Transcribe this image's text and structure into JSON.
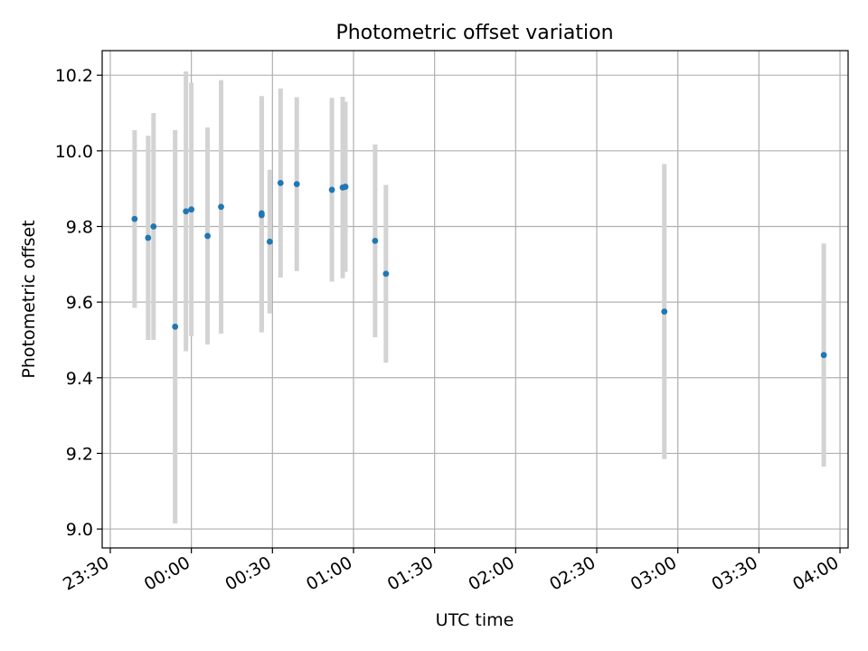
{
  "chart_data": {
    "type": "scatter",
    "title": "Photometric offset variation",
    "xlabel": "UTC time",
    "ylabel": "Photometric offset",
    "x_ticks": [
      "23:30",
      "00:00",
      "00:30",
      "01:00",
      "01:30",
      "02:00",
      "02:30",
      "03:00",
      "03:30",
      "04:00"
    ],
    "y_ticks": [
      "9.0",
      "9.2",
      "9.4",
      "9.6",
      "9.8",
      "10.0",
      "10.2"
    ],
    "xlim": [
      "23:27",
      "04:03"
    ],
    "ylim": [
      8.95,
      10.265
    ],
    "grid": true,
    "legend": "none",
    "colors": {
      "point": "#1f77b4",
      "errorbar": "#d3d3d3",
      "grid": "#b0b0b0"
    },
    "points": [
      {
        "x": "23:39",
        "y": 9.82,
        "err": 0.235
      },
      {
        "x": "23:44",
        "y": 9.77,
        "err": 0.27
      },
      {
        "x": "23:46",
        "y": 9.8,
        "err": 0.3
      },
      {
        "x": "23:54",
        "y": 9.535,
        "err": 0.52
      },
      {
        "x": "23:58",
        "y": 9.84,
        "err": 0.37
      },
      {
        "x": "00:00",
        "y": 9.845,
        "err": 0.335
      },
      {
        "x": "00:06",
        "y": 9.775,
        "err": 0.287
      },
      {
        "x": "00:11",
        "y": 9.852,
        "err": 0.335
      },
      {
        "x": "00:26",
        "y": 9.835,
        "err": 0.31
      },
      {
        "x": "00:26",
        "y": 9.83,
        "err": 0.31
      },
      {
        "x": "00:29",
        "y": 9.76,
        "err": 0.19
      },
      {
        "x": "00:33",
        "y": 9.915,
        "err": 0.25
      },
      {
        "x": "00:39",
        "y": 9.912,
        "err": 0.23
      },
      {
        "x": "00:52",
        "y": 9.897,
        "err": 0.243
      },
      {
        "x": "00:56",
        "y": 9.903,
        "err": 0.24
      },
      {
        "x": "00:57",
        "y": 9.905,
        "err": 0.225
      },
      {
        "x": "01:08",
        "y": 9.762,
        "err": 0.255
      },
      {
        "x": "01:12",
        "y": 9.675,
        "err": 0.235
      },
      {
        "x": "02:55",
        "y": 9.575,
        "err": 0.39
      },
      {
        "x": "03:54",
        "y": 9.46,
        "err": 0.295
      }
    ]
  }
}
